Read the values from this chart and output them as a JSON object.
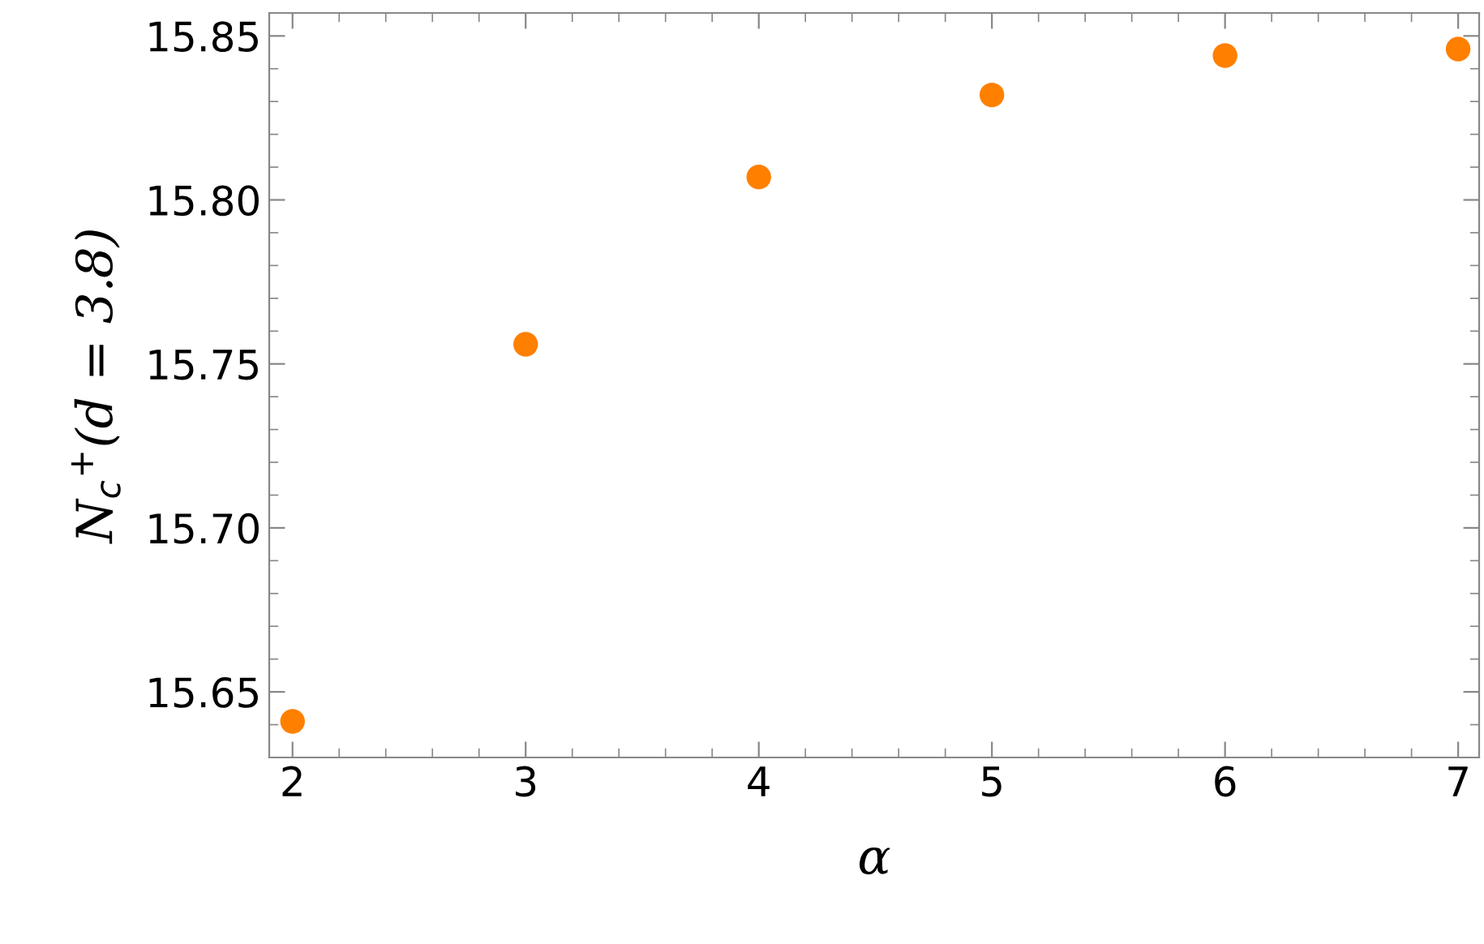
{
  "chart_data": {
    "type": "scatter",
    "xlabel": "α",
    "ylabel": "N$_{c}$$^{+}$(d = 3.8)",
    "x": [
      2,
      3,
      4,
      5,
      6,
      7
    ],
    "series": [
      {
        "color": "#ff8000",
        "values": [
          15.641,
          15.756,
          15.807,
          15.832,
          15.844,
          15.846
        ]
      }
    ],
    "xlim": [
      1.9,
      7.09
    ],
    "ylim": [
      15.63,
      15.857
    ],
    "xticks": [
      2,
      3,
      4,
      5,
      6,
      7
    ],
    "yticks": [
      {
        "value": 15.65,
        "label": "15.65"
      },
      {
        "value": 15.7,
        "label": "15.70"
      },
      {
        "value": 15.75,
        "label": "15.75"
      },
      {
        "value": 15.8,
        "label": "15.80"
      },
      {
        "value": 15.85,
        "label": "15.85"
      }
    ],
    "marker": "circle",
    "grid": false
  }
}
